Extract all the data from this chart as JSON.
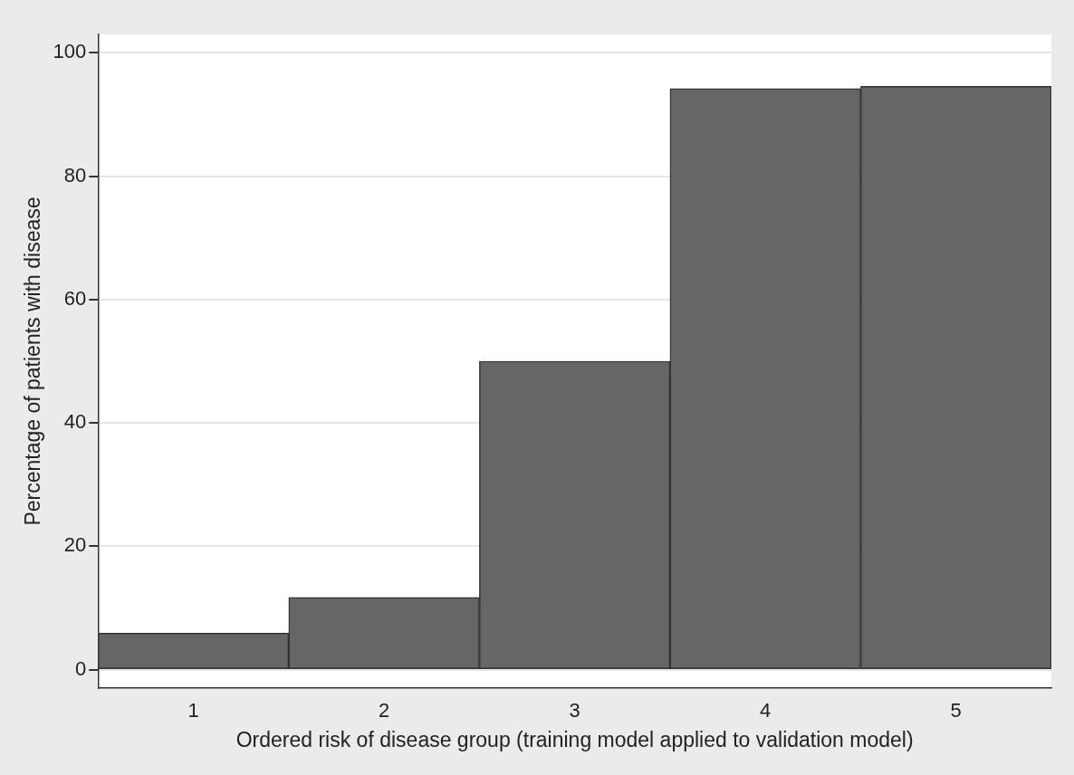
{
  "chart_data": {
    "type": "bar",
    "xlabel": "Ordered risk of disease group (training model applied to validation model)",
    "ylabel": "Percentage of patients with disease",
    "categories": [
      "1",
      "2",
      "3",
      "4",
      "5"
    ],
    "values": [
      5.9,
      11.7,
      50,
      94.2,
      94.6
    ],
    "color": "#666666",
    "ylim": [
      -3,
      103
    ],
    "yticks": [
      0,
      20,
      40,
      60,
      80,
      100
    ],
    "grid": "y",
    "legend": false
  }
}
